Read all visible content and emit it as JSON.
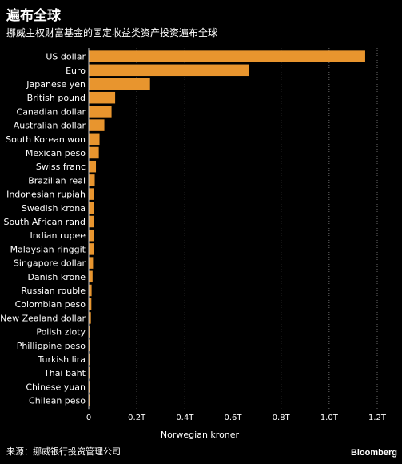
{
  "header": {
    "title": "遍布全球",
    "subtitle": "挪威主权财富基金的固定收益类资产投资遍布全球"
  },
  "footer": {
    "source": "来源：挪威银行投资管理公司",
    "brand": "Bloomberg"
  },
  "colors": {
    "bar": "#E8952E",
    "background": "#000000",
    "grid": "#6a6a6a"
  },
  "chart_data": {
    "type": "bar",
    "orientation": "horizontal",
    "title": "遍布全球",
    "subtitle": "挪威主权财富基金的固定收益类资产投资遍布全球",
    "xlabel": "Norwegian kroner",
    "ylabel": "",
    "xlim": [
      0,
      1.2
    ],
    "xticks": [
      0,
      0.2,
      0.4,
      0.6,
      0.8,
      1.0,
      1.2
    ],
    "xtick_labels": [
      "0",
      "0.2T",
      "0.4T",
      "0.6T",
      "0.8T",
      "1.0T",
      "1.2T"
    ],
    "grid": "vertical dotted",
    "categories": [
      "US dollar",
      "Euro",
      "Japanese yen",
      "British pound",
      "Canadian dollar",
      "Australian dollar",
      "South Korean won",
      "Mexican peso",
      "Swiss franc",
      "Brazilian real",
      "Indonesian rupiah",
      "Swedish krona",
      "South African rand",
      "Indian rupee",
      "Malaysian ringgit",
      "Singapore dollar",
      "Danish krone",
      "Russian rouble",
      "Colombian peso",
      "New Zealand dollar",
      "Polish zloty",
      "Phillippine peso",
      "Turkish lira",
      "Thai baht",
      "Chinese yuan",
      "Chilean peso"
    ],
    "values": [
      1.15,
      0.665,
      0.255,
      0.11,
      0.095,
      0.065,
      0.045,
      0.042,
      0.03,
      0.025,
      0.023,
      0.023,
      0.022,
      0.02,
      0.02,
      0.018,
      0.016,
      0.012,
      0.011,
      0.009,
      0.005,
      0.005,
      0.004,
      0.003,
      0.003,
      0.003
    ]
  }
}
